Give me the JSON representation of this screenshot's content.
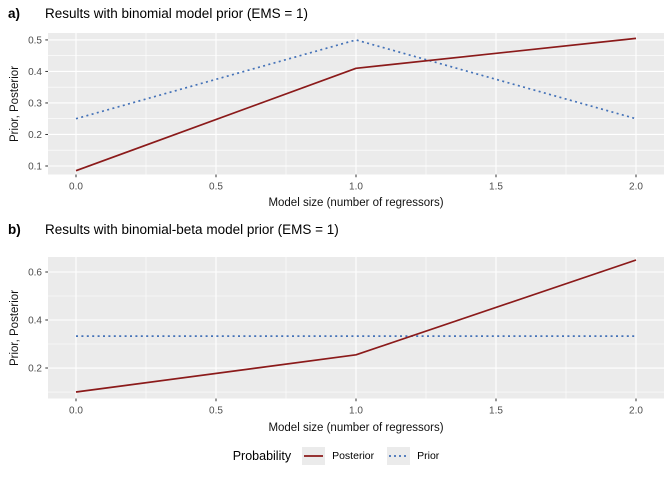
{
  "chart_data": [
    {
      "type": "line",
      "panel_tag": "a)",
      "title": "Results with binomial model prior (EMS = 1)",
      "xlabel": "Model size (number of regressors)",
      "ylabel": "Prior, Posterior",
      "x": [
        0,
        1,
        2
      ],
      "series": [
        {
          "name": "Posterior",
          "values": [
            0.085,
            0.41,
            0.505
          ],
          "color": "#8B1A1A",
          "line_style": "solid"
        },
        {
          "name": "Prior",
          "values": [
            0.25,
            0.5,
            0.25
          ],
          "color": "#4472B8",
          "line_style": "dashed"
        }
      ],
      "xlim": [
        -0.1,
        2.1
      ],
      "ylim": [
        0.073,
        0.522
      ],
      "x_ticks": [
        0,
        0.5,
        1,
        1.5,
        2
      ],
      "x_tick_labels": [
        "0.0",
        "0.5",
        "1.0",
        "1.5",
        "2.0"
      ],
      "x_minor_ticks": [
        0.25,
        0.75,
        1.25,
        1.75
      ],
      "y_ticks": [
        0.1,
        0.2,
        0.3,
        0.4,
        0.5
      ],
      "y_tick_labels": [
        "0.1",
        "0.2",
        "0.3",
        "0.4",
        "0.5"
      ],
      "y_minor_ticks": [
        0.15,
        0.25,
        0.35,
        0.45
      ],
      "grid": true,
      "legend_position": "bottom",
      "panel_bg": "#EBEBEB",
      "grid_color": "#FFFFFF"
    },
    {
      "type": "line",
      "panel_tag": "b)",
      "title": "Results with binomial-beta model prior (EMS = 1)",
      "xlabel": "Model size (number of regressors)",
      "ylabel": "Prior, Posterior",
      "x": [
        0,
        1,
        2
      ],
      "series": [
        {
          "name": "Posterior",
          "values": [
            0.1,
            0.255,
            0.65
          ],
          "color": "#8B1A1A",
          "line_style": "solid"
        },
        {
          "name": "Prior",
          "values": [
            0.333,
            0.333,
            0.333
          ],
          "color": "#4472B8",
          "line_style": "dashed"
        }
      ],
      "xlim": [
        -0.1,
        2.1
      ],
      "ylim": [
        0.073,
        0.6625
      ],
      "x_ticks": [
        0,
        0.5,
        1,
        1.5,
        2
      ],
      "x_tick_labels": [
        "0.0",
        "0.5",
        "1.0",
        "1.5",
        "2.0"
      ],
      "x_minor_ticks": [
        0.25,
        0.75,
        1.25,
        1.75
      ],
      "y_ticks": [
        0.2,
        0.4,
        0.6
      ],
      "y_tick_labels": [
        "0.2",
        "0.4",
        "0.6"
      ],
      "y_minor_ticks": [
        0.1,
        0.3,
        0.5
      ],
      "grid": true,
      "legend_position": "bottom",
      "panel_bg": "#EBEBEB",
      "grid_color": "#FFFFFF"
    }
  ],
  "legend": {
    "title": "Probability",
    "entries": [
      {
        "label": "Posterior",
        "color": "#8B1A1A",
        "line_style": "solid"
      },
      {
        "label": "Prior",
        "color": "#4472B8",
        "line_style": "dashed"
      }
    ]
  },
  "styles": {
    "tick_label_color": "#4D4D4D",
    "tick_mark_color": "#333333"
  }
}
